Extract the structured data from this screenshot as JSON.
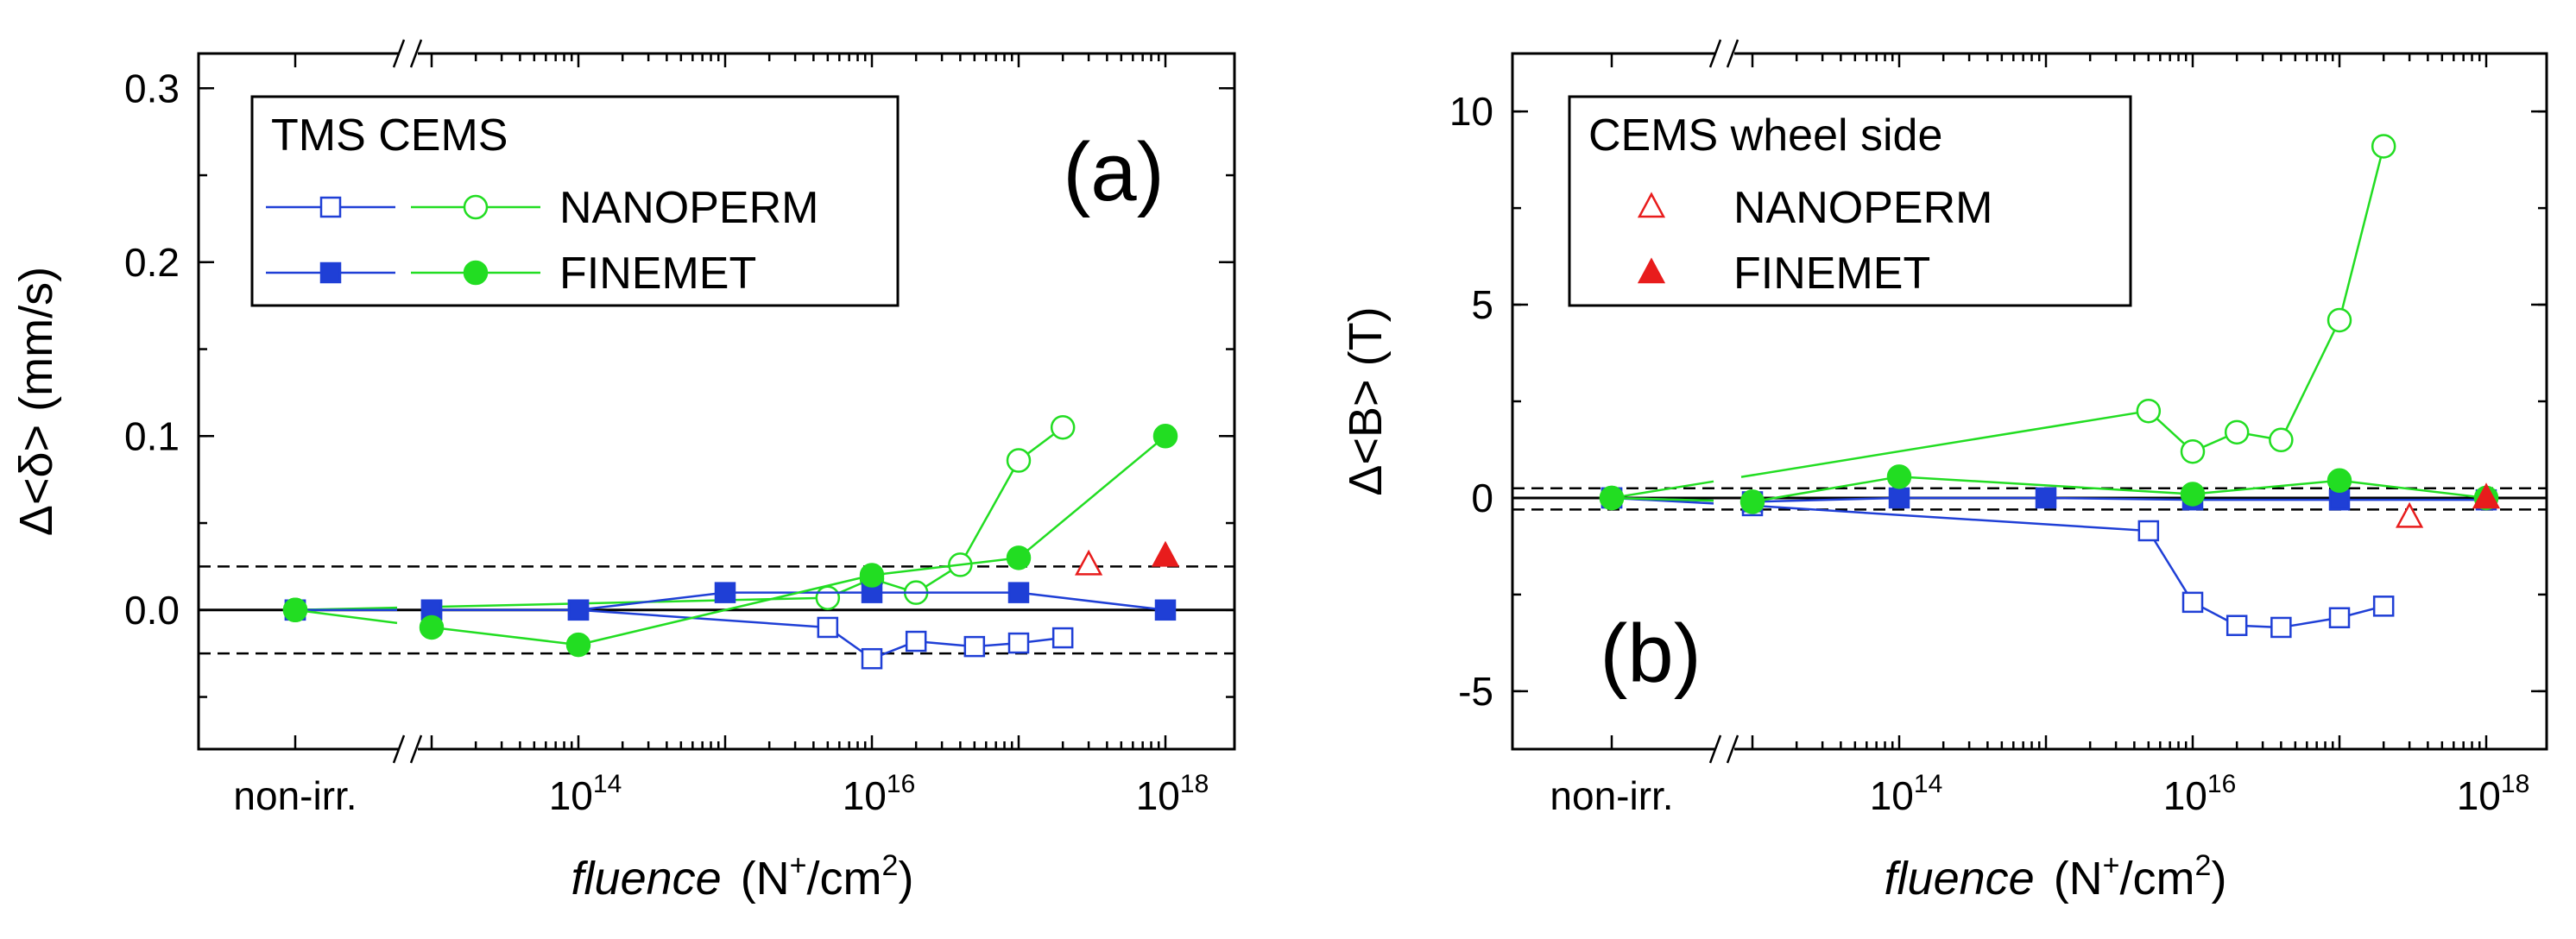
{
  "chart_data": [
    {
      "panel_label": "(a)",
      "type": "line",
      "x_axis": {
        "label_italic": "fluence",
        "label_unit": "(N+/cm2)",
        "scale": "log",
        "break_after": "non-irr.",
        "ticks": [
          {
            "value": "non-irr.",
            "label": "non-irr."
          },
          {
            "value": 100000000000000.0,
            "label": "10",
            "exp": "14"
          },
          {
            "value": 1e+16,
            "label": "10",
            "exp": "16"
          },
          {
            "value": 1e+18,
            "label": "10",
            "exp": "18"
          }
        ]
      },
      "y_axis": {
        "label": "Δ<δ> (mm/s)",
        "ylim": [
          -0.08,
          0.32
        ],
        "ticks": [
          "0.0",
          "0.1",
          "0.2",
          "0.3"
        ]
      },
      "reference_lines": {
        "solid": [
          0
        ],
        "dashed": [
          0.025,
          -0.025
        ]
      },
      "legend": {
        "title": "TMS CEMS",
        "placement": "top-left",
        "entries": [
          "NANOPERM",
          "FINEMET"
        ]
      },
      "series": [
        {
          "name": "NANOPERM",
          "method": "TMS",
          "color": "#1f3fd6",
          "marker": "open-square",
          "points": [
            [
              "non-irr.",
              0.0
            ],
            [
              10000000000000.0,
              0.0
            ],
            [
              100000000000000.0,
              0.0
            ],
            [
              5000000000000000.0,
              -0.01
            ],
            [
              1e+16,
              -0.028
            ],
            [
              2e+16,
              -0.018
            ],
            [
              5e+16,
              -0.021
            ],
            [
              1e+17,
              -0.019
            ],
            [
              2e+17,
              -0.016
            ]
          ]
        },
        {
          "name": "NANOPERM",
          "method": "CEMS",
          "color": "#22dd22",
          "marker": "open-circle",
          "points": [
            [
              "non-irr.",
              0.0
            ],
            [
              5000000000000000.0,
              0.007
            ],
            [
              1e+16,
              0.018
            ],
            [
              2e+16,
              0.01
            ],
            [
              4e+16,
              0.026
            ],
            [
              1e+17,
              0.086
            ],
            [
              2e+17,
              0.105
            ]
          ]
        },
        {
          "name": "FINEMET",
          "method": "TMS",
          "color": "#1f3fd6",
          "marker": "filled-square",
          "points": [
            [
              "non-irr.",
              0.0
            ],
            [
              10000000000000.0,
              0.0
            ],
            [
              100000000000000.0,
              0.0
            ],
            [
              1000000000000000.0,
              0.01
            ],
            [
              1e+16,
              0.01
            ],
            [
              1e+17,
              0.01
            ],
            [
              1e+18,
              0.0
            ]
          ]
        },
        {
          "name": "FINEMET",
          "method": "CEMS",
          "color": "#22dd22",
          "marker": "filled-circle",
          "points": [
            [
              "non-irr.",
              0.0
            ],
            [
              10000000000000.0,
              -0.01
            ],
            [
              100000000000000.0,
              -0.02
            ],
            [
              1e+16,
              0.02
            ],
            [
              1e+17,
              0.03
            ],
            [
              1e+18,
              0.1
            ]
          ]
        },
        {
          "name": "NANOPERM",
          "method": "CEMS wheel side",
          "color": "#e81c1c",
          "marker": "open-triangle",
          "points": [
            [
              3e+17,
              0.026
            ]
          ]
        },
        {
          "name": "FINEMET",
          "method": "CEMS wheel side",
          "color": "#e81c1c",
          "marker": "filled-triangle",
          "points": [
            [
              1e+18,
              0.031
            ]
          ]
        }
      ]
    },
    {
      "panel_label": "(b)",
      "type": "line",
      "x_axis": {
        "label_italic": "fluence",
        "label_unit": "(N+/cm2)",
        "scale": "log",
        "break_after": "non-irr.",
        "ticks": [
          {
            "value": "non-irr.",
            "label": "non-irr."
          },
          {
            "value": 100000000000000.0,
            "label": "10",
            "exp": "14"
          },
          {
            "value": 1e+16,
            "label": "10",
            "exp": "16"
          },
          {
            "value": 1e+18,
            "label": "10",
            "exp": "18"
          }
        ]
      },
      "y_axis": {
        "label": "Δ<B> (T)",
        "ylim": [
          -6.5,
          11.5
        ],
        "ticks": [
          "-5",
          "0",
          "5",
          "10"
        ]
      },
      "reference_lines": {
        "solid": [
          0
        ],
        "dashed": [
          0.25,
          -0.3
        ]
      },
      "legend": {
        "title": "CEMS wheel side",
        "placement": "top-left",
        "entries": [
          "NANOPERM",
          "FINEMET"
        ]
      },
      "series": [
        {
          "name": "NANOPERM",
          "method": "TMS",
          "color": "#1f3fd6",
          "marker": "open-square",
          "points": [
            [
              "non-irr.",
              0.0
            ],
            [
              10000000000000.0,
              -0.2
            ],
            [
              5000000000000000.0,
              -0.85
            ],
            [
              1e+16,
              -2.7
            ],
            [
              2e+16,
              -3.3
            ],
            [
              4e+16,
              -3.35
            ],
            [
              1e+17,
              -3.1
            ],
            [
              2e+17,
              -2.8
            ]
          ]
        },
        {
          "name": "NANOPERM",
          "method": "CEMS",
          "color": "#22dd22",
          "marker": "open-circle",
          "points": [
            [
              "non-irr.",
              0.0
            ],
            [
              5000000000000000.0,
              2.25
            ],
            [
              1e+16,
              1.2
            ],
            [
              2e+16,
              1.7
            ],
            [
              4e+16,
              1.5
            ],
            [
              1e+17,
              4.6
            ],
            [
              2e+17,
              9.1
            ]
          ]
        },
        {
          "name": "FINEMET",
          "method": "TMS",
          "color": "#1f3fd6",
          "marker": "filled-square",
          "points": [
            [
              "non-irr.",
              0.0
            ],
            [
              10000000000000.0,
              -0.1
            ],
            [
              100000000000000.0,
              0.0
            ],
            [
              1000000000000000.0,
              0.0
            ],
            [
              1e+16,
              -0.05
            ],
            [
              1e+17,
              -0.05
            ],
            [
              1e+18,
              -0.05
            ]
          ]
        },
        {
          "name": "FINEMET",
          "method": "CEMS",
          "color": "#22dd22",
          "marker": "filled-circle",
          "points": [
            [
              "non-irr.",
              0.0
            ],
            [
              10000000000000.0,
              -0.1
            ],
            [
              100000000000000.0,
              0.55
            ],
            [
              1e+16,
              0.1
            ],
            [
              1e+17,
              0.45
            ],
            [
              1e+18,
              0.0
            ]
          ]
        },
        {
          "name": "NANOPERM",
          "method": "CEMS wheel side",
          "color": "#e81c1c",
          "marker": "open-triangle",
          "points": [
            [
              3e+17,
              -0.5
            ]
          ]
        },
        {
          "name": "FINEMET",
          "method": "CEMS wheel side",
          "color": "#e81c1c",
          "marker": "filled-triangle",
          "points": [
            [
              1e+18,
              0.0
            ]
          ]
        }
      ]
    }
  ]
}
